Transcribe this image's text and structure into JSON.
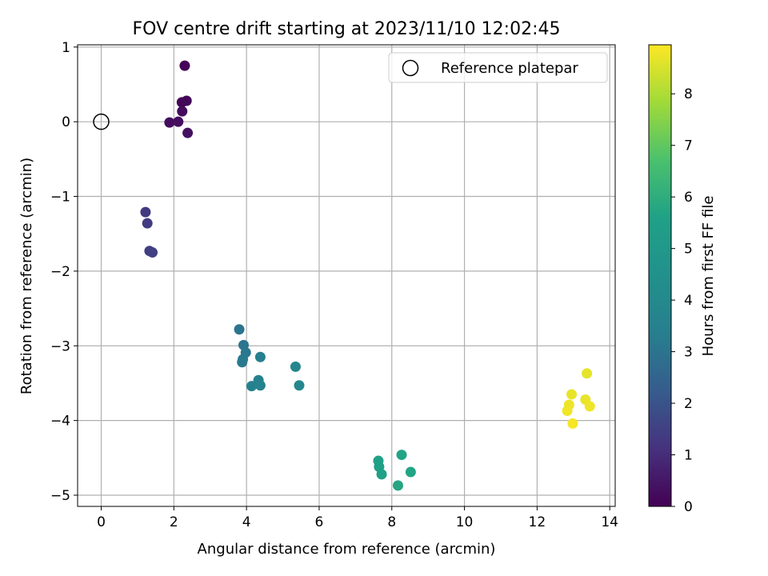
{
  "chart_data": {
    "type": "scatter",
    "title": "FOV centre drift starting at 2023/11/10 12:02:45",
    "xlabel": "Angular distance from reference (arcmin)",
    "ylabel": "Rotation from reference (arcmin)",
    "xlim": [
      -0.65,
      14.15
    ],
    "ylim": [
      -5.15,
      1.03
    ],
    "xticks": [
      0,
      2,
      4,
      6,
      8,
      10,
      12,
      14
    ],
    "yticks": [
      1,
      0,
      -1,
      -2,
      -3,
      -4,
      -5
    ],
    "grid": true,
    "legend": {
      "placement": "top-right",
      "entries": [
        "Reference platepar"
      ]
    },
    "reference_point": {
      "x": 0,
      "y": 0,
      "label": "Reference platepar"
    },
    "colorbar": {
      "label": "Hours from first FF file",
      "range": [
        0,
        8.95
      ],
      "ticks": [
        0,
        1,
        2,
        3,
        4,
        5,
        6,
        7,
        8
      ],
      "colormap": "viridis"
    },
    "points": [
      {
        "x": 2.3,
        "y": 0.75,
        "hours": 0.05
      },
      {
        "x": 2.22,
        "y": 0.26,
        "hours": 0.1
      },
      {
        "x": 2.35,
        "y": 0.28,
        "hours": 0.15
      },
      {
        "x": 2.23,
        "y": 0.14,
        "hours": 0.2
      },
      {
        "x": 1.88,
        "y": -0.01,
        "hours": 0.25
      },
      {
        "x": 2.12,
        "y": 0.0,
        "hours": 0.3
      },
      {
        "x": 2.38,
        "y": -0.15,
        "hours": 0.35
      },
      {
        "x": 1.22,
        "y": -1.21,
        "hours": 1.3
      },
      {
        "x": 1.27,
        "y": -1.36,
        "hours": 1.35
      },
      {
        "x": 1.33,
        "y": -1.73,
        "hours": 1.45
      },
      {
        "x": 1.41,
        "y": -1.75,
        "hours": 1.5
      },
      {
        "x": 3.8,
        "y": -2.78,
        "hours": 3.0
      },
      {
        "x": 3.92,
        "y": -2.99,
        "hours": 3.05
      },
      {
        "x": 3.98,
        "y": -3.09,
        "hours": 3.1
      },
      {
        "x": 3.9,
        "y": -3.18,
        "hours": 3.15
      },
      {
        "x": 3.88,
        "y": -3.22,
        "hours": 3.2
      },
      {
        "x": 4.38,
        "y": -3.15,
        "hours": 3.4
      },
      {
        "x": 4.33,
        "y": -3.46,
        "hours": 3.45
      },
      {
        "x": 4.14,
        "y": -3.54,
        "hours": 3.5
      },
      {
        "x": 4.38,
        "y": -3.53,
        "hours": 3.55
      },
      {
        "x": 5.35,
        "y": -3.28,
        "hours": 3.8
      },
      {
        "x": 5.45,
        "y": -3.53,
        "hours": 3.85
      },
      {
        "x": 7.63,
        "y": -4.54,
        "hours": 5.5
      },
      {
        "x": 7.65,
        "y": -4.62,
        "hours": 5.55
      },
      {
        "x": 7.72,
        "y": -4.72,
        "hours": 5.6
      },
      {
        "x": 8.27,
        "y": -4.46,
        "hours": 5.65
      },
      {
        "x": 8.52,
        "y": -4.69,
        "hours": 5.7
      },
      {
        "x": 8.17,
        "y": -4.87,
        "hours": 5.75
      },
      {
        "x": 13.37,
        "y": -3.37,
        "hours": 8.65
      },
      {
        "x": 12.95,
        "y": -3.65,
        "hours": 8.7
      },
      {
        "x": 13.33,
        "y": -3.72,
        "hours": 8.72
      },
      {
        "x": 12.88,
        "y": -3.79,
        "hours": 8.75
      },
      {
        "x": 13.45,
        "y": -3.81,
        "hours": 8.78
      },
      {
        "x": 12.83,
        "y": -3.87,
        "hours": 8.8
      },
      {
        "x": 12.98,
        "y": -4.04,
        "hours": 8.85
      }
    ]
  }
}
